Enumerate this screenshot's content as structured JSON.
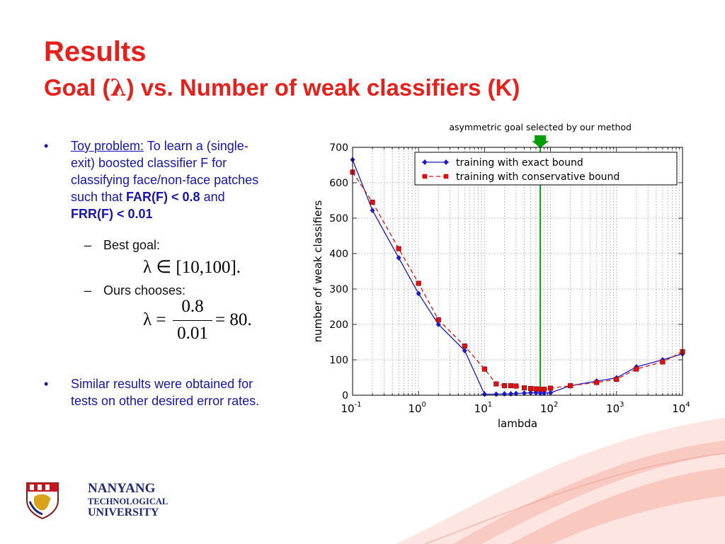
{
  "slide": {
    "title": "Results",
    "subtitle_pre": "Goal (",
    "subtitle_symbol": "λ",
    "subtitle_post": ") vs. Number of weak classifiers (K)"
  },
  "content": {
    "bullet1_label": "Toy problem:",
    "bullet1_line1_rest": " To learn a (single-",
    "bullet1_line2": "exit) boosted classifier F for",
    "bullet1_line3": "classifying face/non-face patches",
    "bullet1_line4_pre": "such that ",
    "bullet1_bold1": "FAR(F) < 0.8",
    "bullet1_line4_post": " and",
    "bullet1_bold2": "FRR(F) < 0.01",
    "sub1": "Best goal:",
    "sub1_math": "λ ∈ [10,100].",
    "sub2": "Ours chooses:",
    "sub2_math_lhs": "λ =",
    "sub2_math_num": "0.8",
    "sub2_math_den": "0.01",
    "sub2_math_rhs": "= 80.",
    "bullet2_line1": "Similar results were obtained for",
    "bullet2_line2": "tests on other desired error rates.",
    "bullet_glyph": "•",
    "dash_glyph": "–"
  },
  "logo": {
    "line1": "NANYANG",
    "line2": "TECHNOLOGICAL",
    "line3": "UNIVERSITY"
  },
  "colors": {
    "title": "#e8201b",
    "body": "#1515b5",
    "exact_series": "#1a1acc",
    "conservative_series": "#dd1111",
    "marker_line": "#00a000"
  },
  "chart_data": {
    "type": "line",
    "title": "",
    "annotation": "asymmetric goal selected by our method",
    "annotation_x": 70,
    "xlabel": "lambda",
    "ylabel": "number of weak classifiers",
    "x_scale": "log",
    "xlim": [
      0.1,
      10000
    ],
    "ylim": [
      0,
      700
    ],
    "y_ticks": [
      0,
      100,
      200,
      300,
      400,
      500,
      600,
      700
    ],
    "x_tick_labels": [
      {
        "base": "10",
        "exp": "-1",
        "value": 0.1
      },
      {
        "base": "10",
        "exp": "0",
        "value": 1
      },
      {
        "base": "10",
        "exp": "1",
        "value": 10
      },
      {
        "base": "10",
        "exp": "2",
        "value": 100
      },
      {
        "base": "10",
        "exp": "3",
        "value": 1000
      },
      {
        "base": "10",
        "exp": "4",
        "value": 10000
      }
    ],
    "grid": true,
    "legend": "top-right",
    "series": [
      {
        "name": "training with exact bound",
        "marker": "diamond",
        "line": "solid",
        "points": [
          [
            0.1,
            665
          ],
          [
            0.2,
            522
          ],
          [
            0.5,
            388
          ],
          [
            1,
            287
          ],
          [
            2,
            200
          ],
          [
            5,
            126
          ],
          [
            10,
            3
          ],
          [
            15,
            3
          ],
          [
            20,
            4
          ],
          [
            25,
            4
          ],
          [
            30,
            5
          ],
          [
            40,
            6
          ],
          [
            50,
            7
          ],
          [
            60,
            7
          ],
          [
            70,
            6
          ],
          [
            80,
            6
          ],
          [
            100,
            7
          ],
          [
            200,
            27
          ],
          [
            500,
            40
          ],
          [
            1000,
            49
          ],
          [
            2000,
            80
          ],
          [
            5000,
            100
          ],
          [
            10000,
            117
          ]
        ]
      },
      {
        "name": "training with conservative bound",
        "marker": "square",
        "line": "dashed",
        "points": [
          [
            0.1,
            630
          ],
          [
            0.2,
            545
          ],
          [
            0.5,
            414
          ],
          [
            1,
            316
          ],
          [
            2,
            213
          ],
          [
            5,
            139
          ],
          [
            10,
            74
          ],
          [
            15,
            32
          ],
          [
            20,
            27
          ],
          [
            25,
            27
          ],
          [
            30,
            26
          ],
          [
            40,
            21
          ],
          [
            50,
            19
          ],
          [
            60,
            18
          ],
          [
            70,
            17
          ],
          [
            80,
            17
          ],
          [
            100,
            20
          ],
          [
            200,
            27
          ],
          [
            500,
            36
          ],
          [
            1000,
            45
          ],
          [
            2000,
            74
          ],
          [
            5000,
            94
          ],
          [
            10000,
            123
          ]
        ]
      }
    ]
  }
}
